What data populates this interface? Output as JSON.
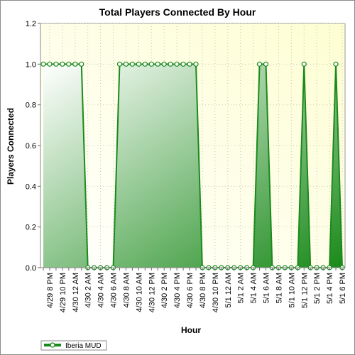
{
  "chart_data": {
    "type": "area",
    "title": "Total Players Connected By Hour",
    "xlabel": "Hour",
    "ylabel": "Players Connected",
    "ylim": [
      0,
      1.2
    ],
    "yticks": [
      "0.0",
      "0.2",
      "0.4",
      "0.6",
      "0.8",
      "1.0",
      "1.2"
    ],
    "ytick_values": [
      0,
      0.2,
      0.4,
      0.6,
      0.8,
      1.0,
      1.2
    ],
    "grid": true,
    "legend_position": "bottom-left",
    "x": [
      "4/29 7 PM",
      "4/29 8 PM",
      "4/29 9 PM",
      "4/29 10 PM",
      "4/29 11 PM",
      "4/30 12 AM",
      "4/30 1 AM",
      "4/30 2 AM",
      "4/30 3 AM",
      "4/30 4 AM",
      "4/30 5 AM",
      "4/30 6 AM",
      "4/30 7 AM",
      "4/30 8 AM",
      "4/30 9 AM",
      "4/30 10 AM",
      "4/30 11 AM",
      "4/30 12 PM",
      "4/30 1 PM",
      "4/30 2 PM",
      "4/30 3 PM",
      "4/30 4 PM",
      "4/30 5 PM",
      "4/30 6 PM",
      "4/30 7 PM",
      "4/30 8 PM",
      "4/30 9 PM",
      "4/30 10 PM",
      "4/30 11 PM",
      "5/1 12 AM",
      "5/1 1 AM",
      "5/1 2 AM",
      "5/1 3 AM",
      "5/1 4 AM",
      "5/1 5 AM",
      "5/1 6 AM",
      "5/1 7 AM",
      "5/1 8 AM",
      "5/1 9 AM",
      "5/1 10 AM",
      "5/1 11 AM",
      "5/1 12 PM",
      "5/1 1 PM",
      "5/1 2 PM",
      "5/1 3 PM",
      "5/1 4 PM",
      "5/1 5 PM",
      "5/1 6 PM"
    ],
    "xtick_labels": [
      "4/29 8 PM",
      "4/29 10 PM",
      "4/30 12 AM",
      "4/30 2 AM",
      "4/30 4 AM",
      "4/30 6 AM",
      "4/30 8 AM",
      "4/30 10 AM",
      "4/30 12 PM",
      "4/30 2 PM",
      "4/30 4 PM",
      "4/30 6 PM",
      "4/30 8 PM",
      "4/30 10 PM",
      "5/1 12 AM",
      "5/1 2 AM",
      "5/1 4 AM",
      "5/1 6 AM",
      "5/1 8 AM",
      "5/1 10 AM",
      "5/1 12 PM",
      "5/1 2 PM",
      "5/1 4 PM",
      "5/1 6 PM"
    ],
    "series": [
      {
        "name": "Iberia MUD",
        "color": "#1a8a1a",
        "values": [
          1,
          1,
          1,
          1,
          1,
          1,
          1,
          0,
          0,
          0,
          0,
          0,
          1,
          1,
          1,
          1,
          1,
          1,
          1,
          1,
          1,
          1,
          1,
          1,
          1,
          0,
          0,
          0,
          0,
          0,
          0,
          0,
          0,
          0,
          1,
          1,
          0,
          0,
          0,
          0,
          0,
          1,
          0,
          0,
          0,
          0,
          1,
          0
        ]
      }
    ]
  }
}
